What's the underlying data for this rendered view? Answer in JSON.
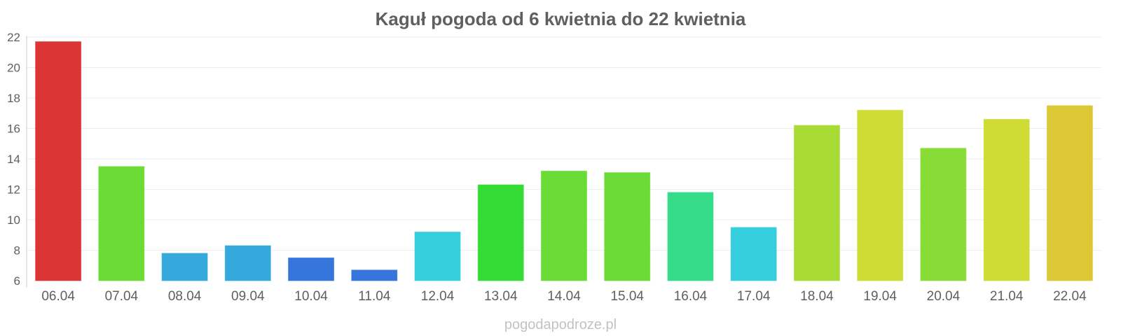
{
  "chart_data": {
    "type": "bar",
    "title": "Kaguł pogoda od 6 kwietnia do 22 kwietnia",
    "xlabel": "",
    "ylabel": "",
    "categories": [
      "06.04",
      "07.04",
      "08.04",
      "09.04",
      "10.04",
      "11.04",
      "12.04",
      "13.04",
      "14.04",
      "15.04",
      "16.04",
      "17.04",
      "18.04",
      "19.04",
      "20.04",
      "21.04",
      "22.04"
    ],
    "values": [
      21.7,
      13.5,
      7.8,
      8.3,
      7.5,
      6.7,
      9.2,
      12.3,
      13.2,
      13.1,
      11.8,
      9.5,
      16.2,
      17.2,
      14.7,
      16.6,
      17.5
    ],
    "colors": [
      "#dc3535",
      "#6adc35",
      "#35a8dc",
      "#35a8dc",
      "#3575dc",
      "#3575dc",
      "#35cedc",
      "#35dc35",
      "#6adc35",
      "#6adc35",
      "#35dc89",
      "#35cedc",
      "#a8dc35",
      "#cedc35",
      "#89dc35",
      "#cedc35",
      "#dcc835"
    ],
    "ylim": [
      6,
      22
    ],
    "yticks": [
      6,
      8,
      10,
      12,
      14,
      16,
      18,
      20,
      22
    ],
    "grid": true,
    "legend": "none"
  },
  "watermark": "pogodapodroze.pl"
}
